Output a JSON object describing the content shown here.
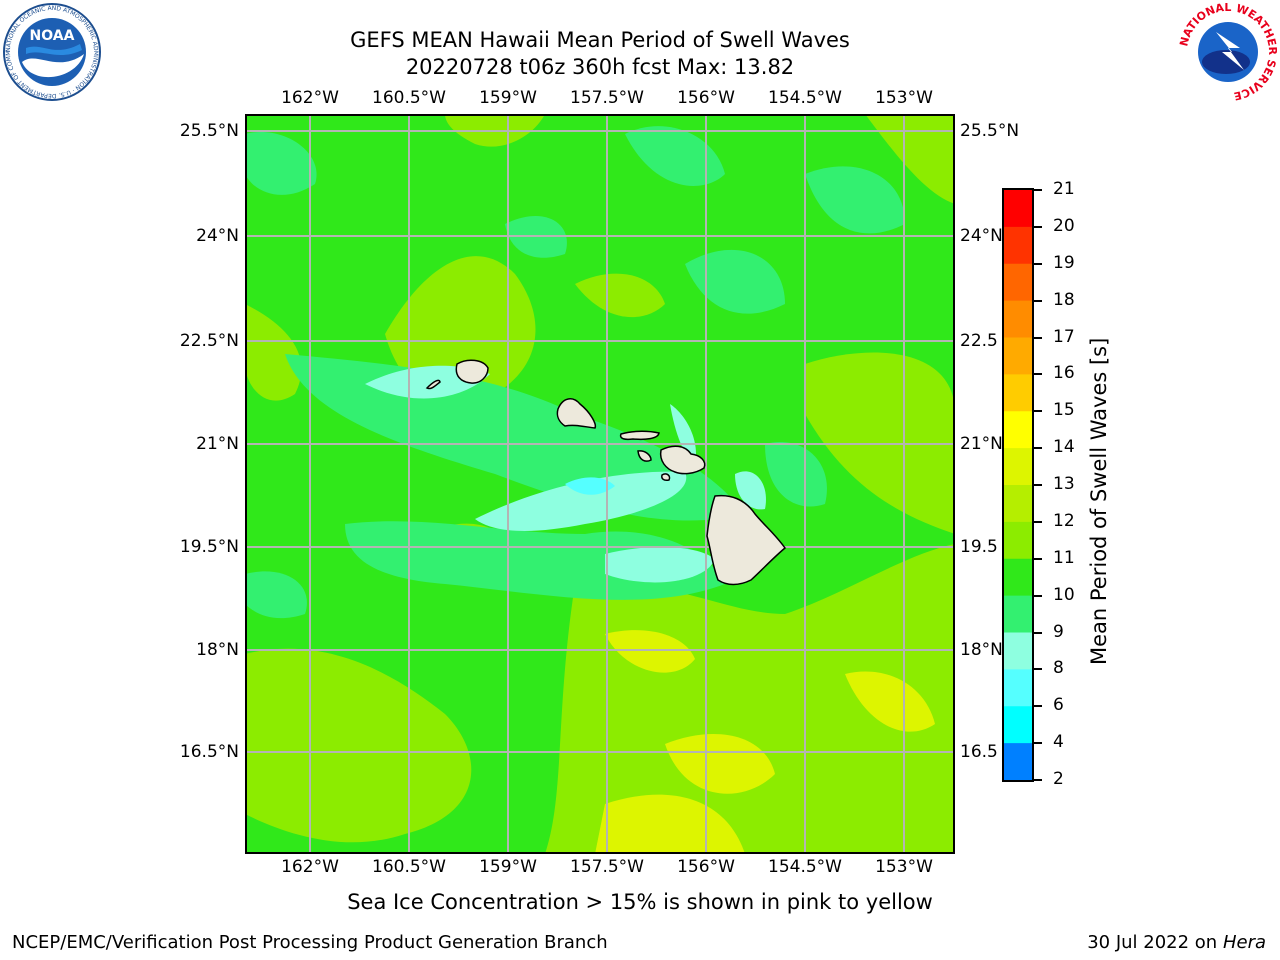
{
  "header": {
    "title_line1": "GEFS MEAN Hawaii Mean Period of Swell Waves",
    "title_line2": "20220728 t06z 360h fcst   Max: 13.82",
    "noaa_logo_text": "NOAA",
    "noaa_ring_text": "NATIONAL OCEANIC AND ATMOSPHERIC ADMINISTRATION · U.S. DEPARTMENT OF COMMERCE",
    "nws_ring_text": "NATIONAL WEATHER SERVICE"
  },
  "map": {
    "lon_labels": [
      "162°W",
      "160.5°W",
      "159°W",
      "157.5°W",
      "156°W",
      "154.5°W",
      "153°W"
    ],
    "lat_labels": [
      "25.5°N",
      "24°N",
      "22.5°N",
      "21°N",
      "19.5°N",
      "18°N",
      "16.5°N"
    ],
    "right_lat_labels": [
      "25.5°N",
      "24°N",
      "22.5",
      "21°N",
      "19.5",
      "18°N",
      "16.5"
    ],
    "extent": {
      "lon_min": -162.9,
      "lon_max": -152.6,
      "lat_min": 15.0,
      "lat_max": 25.7
    },
    "gridlines": true,
    "islands": [
      "Kauai",
      "Niihau",
      "Oahu",
      "Molokai",
      "Lanai",
      "Maui",
      "Kahoolawe",
      "Hawaii"
    ]
  },
  "colorbar": {
    "label": "Mean Period of Swell Waves [s]",
    "ticks": [
      "21",
      "20",
      "19",
      "18",
      "17",
      "16",
      "15",
      "14",
      "13",
      "12",
      "11",
      "10",
      "9",
      "8",
      "6",
      "4",
      "2"
    ],
    "colors": [
      "#ff0000",
      "#ff3300",
      "#ff6600",
      "#ff8c00",
      "#ffaa00",
      "#ffcc00",
      "#ffff00",
      "#ddf500",
      "#b5ee00",
      "#8cec00",
      "#30e81a",
      "#33f070",
      "#8effe0",
      "#55ffff",
      "#00ffff",
      "#0080ff",
      "#0000ff"
    ]
  },
  "footer": {
    "note": "Sea Ice Concentration > 15% is shown in pink to yellow",
    "branch": "NCEP/EMC/Verification Post Processing Product Generation Branch",
    "date": "30 Jul 2022 on ",
    "machine": "Hera"
  }
}
